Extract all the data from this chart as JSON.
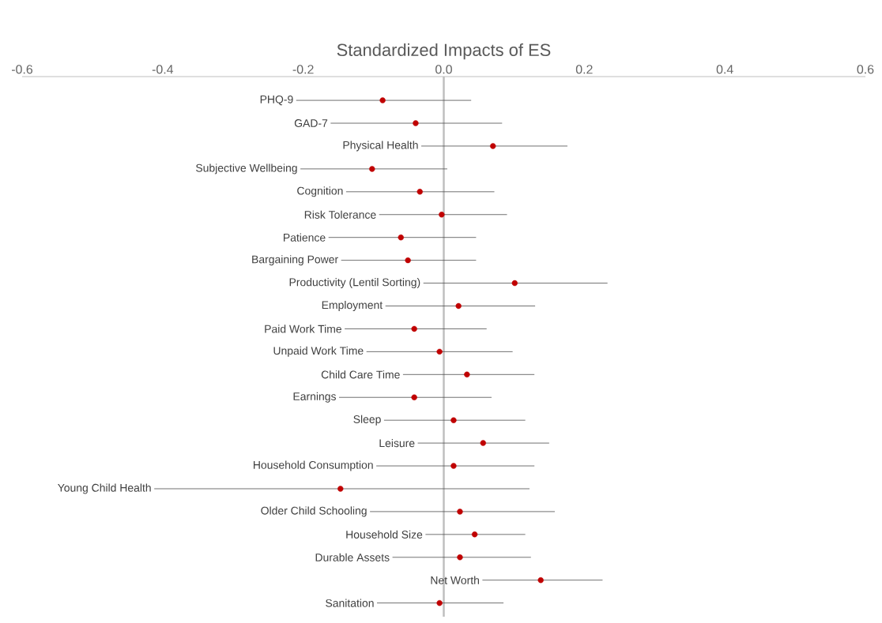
{
  "chart_data": {
    "type": "scatter",
    "orientation": "horizontal",
    "xlabel": "Standardized Impacts of ES",
    "categories": [
      "PHQ-9",
      "GAD-7",
      "Physical Health",
      "Subjective Wellbeing",
      "Cognition",
      "Risk Tolerance",
      "Patience",
      "Bargaining Power",
      "Productivity (Lentil Sorting)",
      "Employment",
      "Paid Work Time",
      "Unpaid Work Time",
      "Child Care Time",
      "Earnings",
      "Sleep",
      "Leisure",
      "Household Consumption",
      "Young Child Health",
      "Older Child Schooling",
      "Household Size",
      "Durable Assets",
      "Net Worth",
      "Sanitation"
    ],
    "values": [
      -0.087,
      -0.04,
      0.07,
      -0.102,
      -0.034,
      -0.003,
      -0.061,
      -0.051,
      0.101,
      0.021,
      -0.042,
      -0.006,
      0.033,
      -0.042,
      0.014,
      0.056,
      0.014,
      -0.147,
      0.023,
      0.044,
      0.023,
      0.138,
      -0.006
    ],
    "errors": [
      [
        -0.21,
        0.039
      ],
      [
        -0.161,
        0.083
      ],
      [
        -0.032,
        0.176
      ],
      [
        -0.204,
        0.005
      ],
      [
        -0.139,
        0.072
      ],
      [
        -0.092,
        0.09
      ],
      [
        -0.164,
        0.046
      ],
      [
        -0.146,
        0.046
      ],
      [
        -0.029,
        0.233
      ],
      [
        -0.083,
        0.13
      ],
      [
        -0.141,
        0.061
      ],
      [
        -0.11,
        0.098
      ],
      [
        -0.058,
        0.129
      ],
      [
        -0.149,
        0.068
      ],
      [
        -0.085,
        0.116
      ],
      [
        -0.037,
        0.15
      ],
      [
        -0.096,
        0.129
      ],
      [
        -0.412,
        0.122
      ],
      [
        -0.105,
        0.158
      ],
      [
        -0.026,
        0.116
      ],
      [
        -0.073,
        0.124
      ],
      [
        0.055,
        0.226
      ],
      [
        -0.095,
        0.085
      ]
    ],
    "color": "#c00000",
    "xlim": [
      -0.6,
      0.6
    ],
    "xticks": [
      -0.6,
      -0.4,
      -0.2,
      {
        "value": 0,
        "label": "0.0"
      },
      0.2,
      0.4,
      0.6
    ],
    "ref_lines": [
      {
        "axis": "x",
        "value": 0,
        "color": "#bfbfbf"
      }
    ]
  }
}
